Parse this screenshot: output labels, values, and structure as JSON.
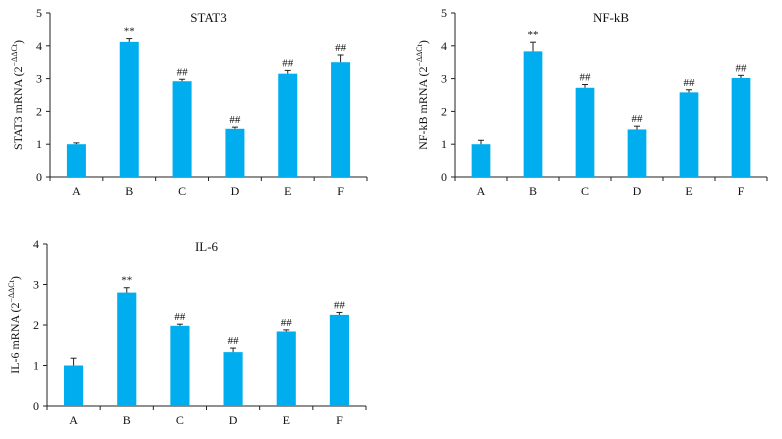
{
  "chart_data": [
    {
      "type": "bar",
      "title": "STAT3",
      "ylabel": "STAT3 mRNA (2",
      "ylabel_sup": "−ΔΔCt",
      "ylabel_close": ")",
      "categories": [
        "A",
        "B",
        "C",
        "D",
        "E",
        "F"
      ],
      "values": [
        1.0,
        4.12,
        2.92,
        1.47,
        3.15,
        3.5
      ],
      "errors": [
        0.04,
        0.1,
        0.06,
        0.05,
        0.1,
        0.22
      ],
      "annotations": [
        "",
        "**",
        "##",
        "##",
        "##",
        "##"
      ],
      "ylim": [
        0,
        5
      ],
      "yticks": [
        "0",
        "1",
        "2",
        "3",
        "4",
        "5"
      ],
      "color": "#00AEEF"
    },
    {
      "type": "bar",
      "title": "NF-kB",
      "ylabel": "NF-kB mRNA (2",
      "ylabel_sup": "−ΔΔCt",
      "ylabel_close": ")",
      "categories": [
        "A",
        "B",
        "C",
        "D",
        "E",
        "F"
      ],
      "values": [
        1.0,
        3.83,
        2.72,
        1.45,
        2.58,
        3.02
      ],
      "errors": [
        0.12,
        0.28,
        0.1,
        0.1,
        0.08,
        0.08
      ],
      "annotations": [
        "",
        "**",
        "##",
        "##",
        "##",
        "##"
      ],
      "ylim": [
        0,
        5
      ],
      "yticks": [
        "0",
        "1",
        "2",
        "3",
        "4",
        "5"
      ],
      "color": "#00AEEF"
    },
    {
      "type": "bar",
      "title": "IL-6",
      "ylabel": "IL-6 mRNA (2",
      "ylabel_sup": "−ΔΔCt",
      "ylabel_close": ")",
      "categories": [
        "A",
        "B",
        "C",
        "D",
        "E",
        "F"
      ],
      "values": [
        1.0,
        2.8,
        1.98,
        1.33,
        1.84,
        2.25
      ],
      "errors": [
        0.18,
        0.12,
        0.04,
        0.1,
        0.04,
        0.06
      ],
      "annotations": [
        "",
        "**",
        "##",
        "##",
        "##",
        "##"
      ],
      "ylim": [
        0,
        4
      ],
      "yticks": [
        "0",
        "1",
        "2",
        "3",
        "4"
      ],
      "color": "#00AEEF"
    }
  ]
}
